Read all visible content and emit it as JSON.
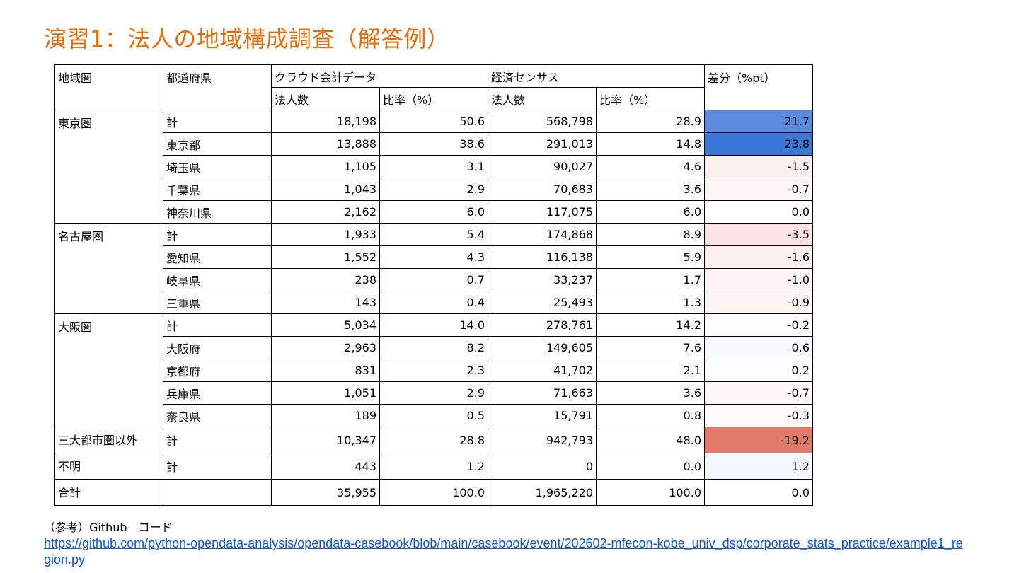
{
  "title": "演習1：法人の地域構成調査（解答例）",
  "headers": {
    "region": "地域圏",
    "prefecture": "都道府県",
    "cloud": "クラウド会計データ",
    "census": "経済センサス",
    "diff": "差分（%pt）",
    "count": "法人数",
    "ratio": "比率（%）"
  },
  "rows": [
    {
      "region": "東京圏",
      "pref": "計",
      "cloud_n": "18,198",
      "cloud_r": "50.6",
      "census_n": "568,798",
      "census_r": "28.9",
      "diff": "21.7",
      "diff_color": "#5b8be0"
    },
    {
      "region": "",
      "pref": "東京都",
      "cloud_n": "13,888",
      "cloud_r": "38.6",
      "census_n": "291,013",
      "census_r": "14.8",
      "diff": "23.8",
      "diff_color": "#3d77d6"
    },
    {
      "region": "",
      "pref": "埼玉県",
      "cloud_n": "1,105",
      "cloud_r": "3.1",
      "census_n": "90,027",
      "census_r": "4.6",
      "diff": "-1.5",
      "diff_color": "#fcf0ef"
    },
    {
      "region": "",
      "pref": "千葉県",
      "cloud_n": "1,043",
      "cloud_r": "2.9",
      "census_n": "70,683",
      "census_r": "3.6",
      "diff": "-0.7",
      "diff_color": "#fdf6f6"
    },
    {
      "region": "",
      "pref": "神奈川県",
      "cloud_n": "2,162",
      "cloud_r": "6.0",
      "census_n": "117,075",
      "census_r": "6.0",
      "diff": "0.0",
      "diff_color": "#ffffff"
    },
    {
      "region": "名古屋圏",
      "pref": "計",
      "cloud_n": "1,933",
      "cloud_r": "5.4",
      "census_n": "174,868",
      "census_r": "8.9",
      "diff": "-3.5",
      "diff_color": "#f8e3e0"
    },
    {
      "region": "",
      "pref": "愛知県",
      "cloud_n": "1,552",
      "cloud_r": "4.3",
      "census_n": "116,138",
      "census_r": "5.9",
      "diff": "-1.6",
      "diff_color": "#fcf0ef"
    },
    {
      "region": "",
      "pref": "岐阜県",
      "cloud_n": "238",
      "cloud_r": "0.7",
      "census_n": "33,237",
      "census_r": "1.7",
      "diff": "-1.0",
      "diff_color": "#fdf4f3"
    },
    {
      "region": "",
      "pref": "三重県",
      "cloud_n": "143",
      "cloud_r": "0.4",
      "census_n": "25,493",
      "census_r": "1.3",
      "diff": "-0.9",
      "diff_color": "#fdf5f4"
    },
    {
      "region": "大阪圏",
      "pref": "計",
      "cloud_n": "5,034",
      "cloud_r": "14.0",
      "census_n": "278,761",
      "census_r": "14.2",
      "diff": "-0.2",
      "diff_color": "#fefcfc"
    },
    {
      "region": "",
      "pref": "大阪府",
      "cloud_n": "2,963",
      "cloud_r": "8.2",
      "census_n": "149,605",
      "census_r": "7.6",
      "diff": "0.6",
      "diff_color": "#f7f9fe"
    },
    {
      "region": "",
      "pref": "京都府",
      "cloud_n": "831",
      "cloud_r": "2.3",
      "census_n": "41,702",
      "census_r": "2.1",
      "diff": "0.2",
      "diff_color": "#fcfdff"
    },
    {
      "region": "",
      "pref": "兵庫県",
      "cloud_n": "1,051",
      "cloud_r": "2.9",
      "census_n": "71,663",
      "census_r": "3.6",
      "diff": "-0.7",
      "diff_color": "#fdf7f6"
    },
    {
      "region": "",
      "pref": "奈良県",
      "cloud_n": "189",
      "cloud_r": "0.5",
      "census_n": "15,791",
      "census_r": "0.8",
      "diff": "-0.3",
      "diff_color": "#fefbfb"
    },
    {
      "region": "三大都市圏以外",
      "pref": "計",
      "cloud_n": "10,347",
      "cloud_r": "28.8",
      "census_n": "942,793",
      "census_r": "48.0",
      "diff": "-19.2",
      "diff_color": "#e07b68"
    },
    {
      "region": "不明",
      "pref": "計",
      "cloud_n": "443",
      "cloud_r": "1.2",
      "census_n": "0",
      "census_r": "0.0",
      "diff": "1.2",
      "diff_color": "#f3f7fe"
    },
    {
      "region": "合計",
      "pref": "",
      "cloud_n": "35,955",
      "cloud_r": "100.0",
      "census_n": "1,965,220",
      "census_r": "100.0",
      "diff": "0.0",
      "diff_color": "#ffffff"
    }
  ],
  "reference": {
    "label": "（参考）Github　コード",
    "url": "https://github.com/python-opendata-analysis/opendata-casebook/blob/main/casebook/event/202602-mfecon-kobe_univ_dsp/corporate_stats_practice/example1_region.py"
  }
}
